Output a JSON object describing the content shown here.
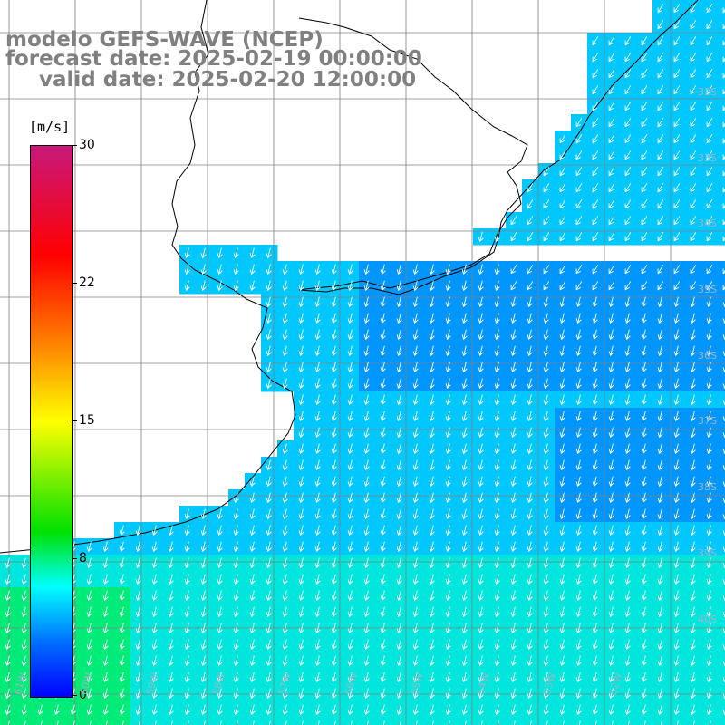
{
  "title": {
    "line1": "modelo GEFS-WAVE (NCEP)",
    "line2": "forecast date: 2025-02-19 00:00:00",
    "line3": "valid date: 2025-02-20 12:00:00"
  },
  "colorbar": {
    "unit": "[m/s]",
    "range": [
      0,
      30
    ],
    "ticks": [
      {
        "value": 30,
        "label": "30"
      },
      {
        "value": 22,
        "label": "22"
      },
      {
        "value": 15,
        "label": "15"
      },
      {
        "value": 8,
        "label": "8"
      },
      {
        "value": 0,
        "label": "0"
      }
    ],
    "colors": [
      "#0000ff",
      "#0070ff",
      "#00ffff",
      "#00e000",
      "#ffff00",
      "#ff7a00",
      "#ff0000",
      "#c8187c"
    ]
  },
  "grid_labels": {
    "latitudes": [
      "32S",
      "33S",
      "34S",
      "35S",
      "36S",
      "37S",
      "38S",
      "39S",
      "40S"
    ],
    "longitudes": [
      "61W",
      "60W",
      "59W",
      "58W",
      "57W",
      "56W",
      "55W",
      "54W",
      "53W",
      "52W"
    ]
  },
  "wind_field": {
    "direction": "from the north (arrows pointing mostly south, slightly west near the coast)",
    "dominant_speed_range_ms": [
      6,
      10
    ]
  }
}
